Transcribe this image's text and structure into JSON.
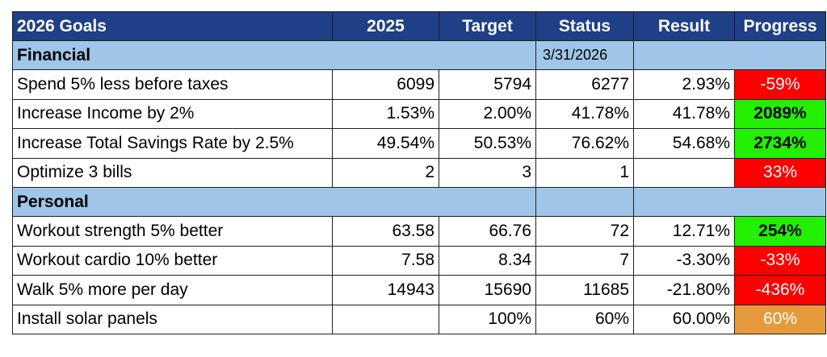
{
  "header": {
    "goal": "2026 Goals",
    "baseline": "2025",
    "target": "Target",
    "status": "Status",
    "result": "Result",
    "progress": "Progress"
  },
  "colors": {
    "header_bg": "#1f3f87",
    "section_bg": "#9fc6e8",
    "progress_red": "#ff0000",
    "progress_green": "#22f000",
    "progress_orange": "#e69a3c"
  },
  "sections": [
    {
      "label": "Financial",
      "status_date": "3/31/2026",
      "rows": [
        {
          "goal": "Spend 5% less before taxes",
          "baseline": "6099",
          "target": "5794",
          "status": "6277",
          "result": "2.93%",
          "progress": "-59%",
          "progress_color": "red"
        },
        {
          "goal": "Increase Income by 2%",
          "baseline": "1.53%",
          "target": "2.00%",
          "status": "41.78%",
          "result": "41.78%",
          "progress": "2089%",
          "progress_color": "green"
        },
        {
          "goal": "Increase Total Savings Rate by 2.5%",
          "baseline": "49.54%",
          "target": "50.53%",
          "status": "76.62%",
          "result": "54.68%",
          "progress": "2734%",
          "progress_color": "green"
        },
        {
          "goal": "Optimize 3 bills",
          "baseline": "2",
          "target": "3",
          "status": "1",
          "result": "",
          "progress": "33%",
          "progress_color": "red"
        }
      ]
    },
    {
      "label": "Personal",
      "status_date": "",
      "rows": [
        {
          "goal": "Workout strength 5% better",
          "baseline": "63.58",
          "target": "66.76",
          "status": "72",
          "result": "12.71%",
          "progress": "254%",
          "progress_color": "green"
        },
        {
          "goal": "Workout cardio 10% better",
          "baseline": "7.58",
          "target": "8.34",
          "status": "7",
          "result": "-3.30%",
          "progress": "-33%",
          "progress_color": "red"
        },
        {
          "goal": "Walk 5% more per day",
          "baseline": "14943",
          "target": "15690",
          "status": "11685",
          "result": "-21.80%",
          "progress": "-436%",
          "progress_color": "red"
        },
        {
          "goal": "Install solar panels",
          "baseline": "",
          "target": "100%",
          "status": "60%",
          "result": "60.00%",
          "progress": "60%",
          "progress_color": "orange"
        }
      ]
    }
  ]
}
